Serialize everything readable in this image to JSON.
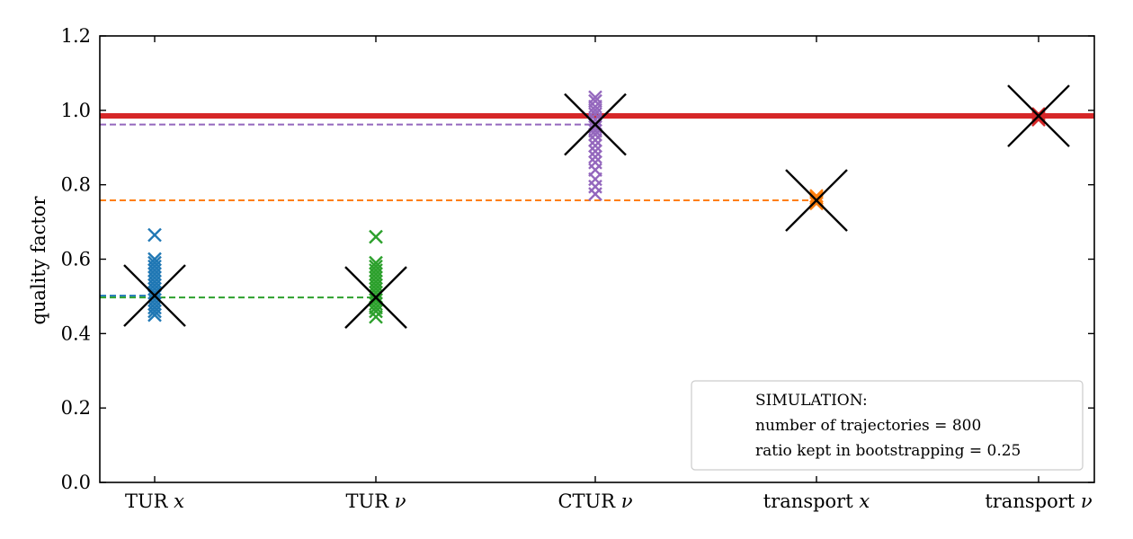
{
  "chart_data": {
    "type": "scatter",
    "ylabel": "quality factor",
    "xlabel": "",
    "ylim": [
      0.0,
      1.2
    ],
    "yticks": [
      0.0,
      0.2,
      0.4,
      0.6,
      0.8,
      1.0,
      1.2
    ],
    "ytick_labels": [
      "0.0",
      "0.2",
      "0.4",
      "0.6",
      "0.8",
      "1.0",
      "1.2"
    ],
    "categories": [
      "TUR x",
      "TUR ν",
      "CTUR ν",
      "transport x",
      "transport ν"
    ],
    "category_labels": [
      {
        "text": "TUR ",
        "var": "x"
      },
      {
        "text": "TUR ",
        "var": "ν"
      },
      {
        "text": "CTUR ",
        "var": "ν"
      },
      {
        "text": "transport ",
        "var": "x"
      },
      {
        "text": "transport ",
        "var": "ν"
      }
    ],
    "grid": false,
    "series": [
      {
        "category": "TUR x",
        "color": "#1f77b4",
        "samples": [
          0.665,
          0.6,
          0.59,
          0.58,
          0.57,
          0.56,
          0.55,
          0.54,
          0.53,
          0.52,
          0.51,
          0.5,
          0.49,
          0.48,
          0.47,
          0.46,
          0.45
        ],
        "mean": 0.502
      },
      {
        "category": "TUR ν",
        "color": "#2ca02c",
        "samples": [
          0.66,
          0.59,
          0.58,
          0.57,
          0.56,
          0.55,
          0.54,
          0.53,
          0.52,
          0.51,
          0.5,
          0.49,
          0.48,
          0.47,
          0.46,
          0.445
        ],
        "mean": 0.497
      },
      {
        "category": "CTUR ν",
        "color": "#9467bd",
        "samples": [
          1.035,
          1.025,
          1.01,
          1.0,
          0.99,
          0.975,
          0.965,
          0.955,
          0.945,
          0.935,
          0.92,
          0.905,
          0.89,
          0.875,
          0.86,
          0.84,
          0.815,
          0.795,
          0.775
        ],
        "mean": 0.962
      },
      {
        "category": "transport x",
        "color": "#ff7f0e",
        "samples": [
          0.77,
          0.765,
          0.76,
          0.755,
          0.75
        ],
        "mean": 0.758
      },
      {
        "category": "transport ν",
        "color": "#d62728",
        "samples": [
          0.99,
          0.985,
          0.98,
          0.975
        ],
        "mean": 0.985
      }
    ],
    "mean_markers": [
      {
        "category": "TUR x",
        "value": 0.502
      },
      {
        "category": "TUR ν",
        "value": 0.497
      },
      {
        "category": "CTUR ν",
        "value": 0.962
      },
      {
        "category": "transport x",
        "value": 0.758
      },
      {
        "category": "transport ν",
        "value": 0.985
      }
    ],
    "reference_lines": [
      {
        "color": "#1f77b4",
        "style": "dashed",
        "value": 0.502,
        "to_category": "TUR x"
      },
      {
        "color": "#2ca02c",
        "style": "dashed",
        "value": 0.497,
        "to_category": "TUR ν"
      },
      {
        "color": "#9467bd",
        "style": "dashed",
        "value": 0.962,
        "to_category": "CTUR ν"
      },
      {
        "color": "#ff7f0e",
        "style": "dashed",
        "value": 0.758,
        "to_category": "transport x"
      },
      {
        "color": "#d62728",
        "style": "solid",
        "value": 0.985,
        "to_category": "all"
      }
    ],
    "legend": {
      "placement": "bottom-right",
      "lines": [
        "SIMULATION:",
        "number of trajectories = 800",
        "ratio kept in bootstrapping = 0.25"
      ]
    }
  }
}
